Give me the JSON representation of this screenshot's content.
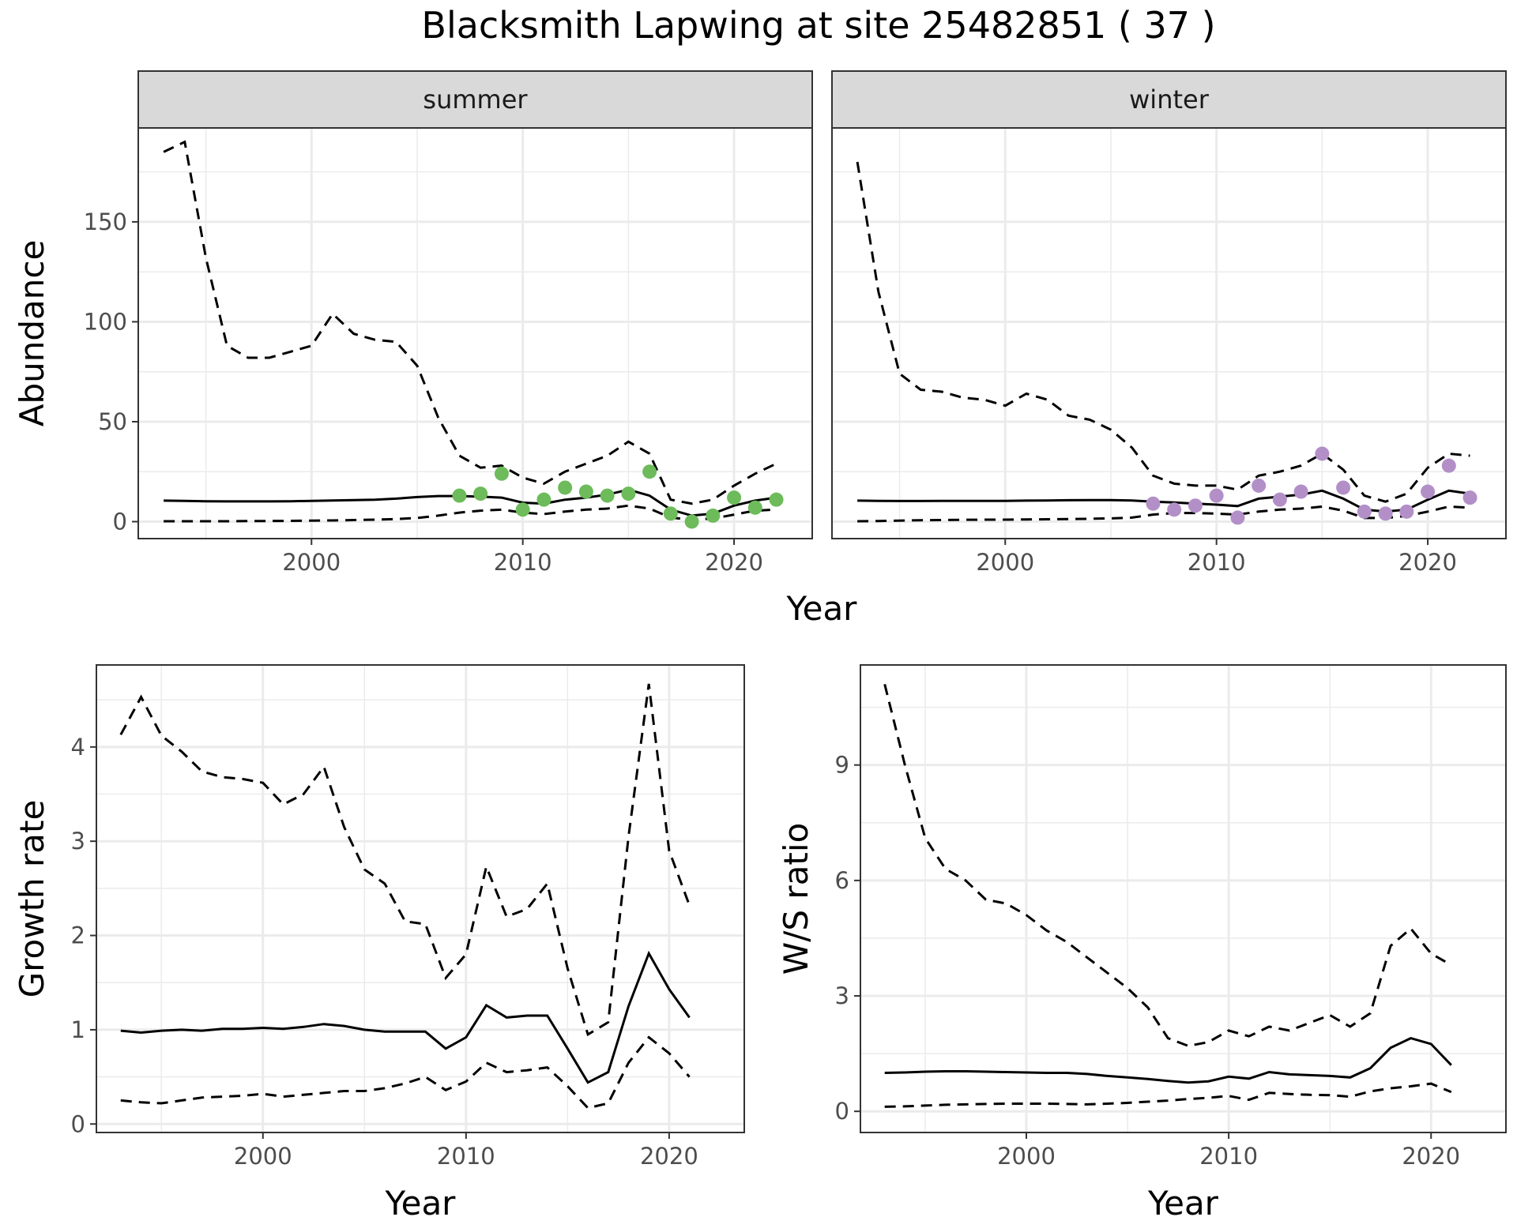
{
  "chart_data": {
    "title": "Blacksmith Lapwing at site 25482851 ( 37 )",
    "colors": {
      "summer_points": "#6dbb5a",
      "winter_points": "#b38fc8",
      "lines": "#000000"
    },
    "abundance": {
      "type": "line",
      "xlabel": "Year",
      "ylabel": "Abundance",
      "xlim": [
        1991.8,
        2023.7
      ],
      "ylim": [
        -8.5,
        197
      ],
      "xticks": [
        2000,
        2010,
        2020
      ],
      "xtick_labels": [
        "2000",
        "2010",
        "2020"
      ],
      "yticks": [
        0,
        50,
        100,
        150
      ],
      "ytick_labels": [
        "0",
        "50",
        "100",
        "150"
      ],
      "grid": true,
      "panels": [
        {
          "strip": "summer",
          "years": [
            1993,
            1994,
            1995,
            1996,
            1997,
            1998,
            1999,
            2000,
            2001,
            2002,
            2003,
            2004,
            2005,
            2006,
            2007,
            2008,
            2009,
            2010,
            2011,
            2012,
            2013,
            2014,
            2015,
            2016,
            2017,
            2018,
            2019,
            2020,
            2021,
            2022
          ],
          "mean": [
            10.5,
            10.4,
            10.2,
            10.1,
            10.1,
            10.1,
            10.2,
            10.4,
            10.6,
            10.8,
            11,
            11.5,
            12.3,
            12.8,
            12.8,
            12.5,
            12,
            9.5,
            9,
            11,
            12,
            13.5,
            16,
            13,
            6,
            3,
            4,
            8,
            10.5,
            12
          ],
          "upper": [
            185,
            190,
            132,
            88,
            82,
            82,
            85,
            88,
            104,
            94,
            91,
            90,
            78,
            52,
            33,
            27,
            28,
            22,
            19,
            25,
            29,
            33,
            40,
            34,
            11,
            9,
            11,
            18,
            24,
            29
          ],
          "lower": [
            0.2,
            0.2,
            0.2,
            0.2,
            0.3,
            0.3,
            0.4,
            0.5,
            0.6,
            0.8,
            1,
            1.3,
            1.8,
            3,
            4.5,
            5.5,
            6,
            4.5,
            3.8,
            5,
            6,
            6.5,
            8,
            6.5,
            2,
            1,
            1.5,
            3.5,
            5.5,
            6
          ],
          "obs_years": [
            2007,
            2008,
            2009,
            2010,
            2011,
            2012,
            2013,
            2014,
            2015,
            2016,
            2017,
            2018,
            2019,
            2020,
            2021,
            2022
          ],
          "obs_values": [
            13,
            14,
            24,
            6,
            11,
            17,
            15,
            13,
            14,
            25,
            4,
            0,
            3,
            12,
            7,
            11
          ]
        },
        {
          "strip": "winter",
          "years": [
            1993,
            1994,
            1995,
            1996,
            1997,
            1998,
            1999,
            2000,
            2001,
            2002,
            2003,
            2004,
            2005,
            2006,
            2007,
            2008,
            2009,
            2010,
            2011,
            2012,
            2013,
            2014,
            2015,
            2016,
            2017,
            2018,
            2019,
            2020,
            2021,
            2022
          ],
          "mean": [
            10.5,
            10.4,
            10.3,
            10.3,
            10.4,
            10.4,
            10.4,
            10.4,
            10.5,
            10.6,
            10.7,
            10.8,
            10.8,
            10.6,
            10,
            9.6,
            9,
            8.5,
            7.8,
            11.5,
            12.5,
            13.5,
            15.5,
            11.5,
            6,
            5,
            6,
            11,
            15.5,
            14
          ],
          "upper": [
            180,
            115,
            74,
            66,
            65,
            62,
            61,
            58,
            64,
            61,
            53,
            51,
            46,
            37,
            23,
            19,
            18,
            18,
            16,
            23,
            25,
            28,
            34,
            26,
            13,
            10,
            14,
            27,
            34,
            33
          ],
          "lower": [
            0.2,
            0.3,
            0.5,
            0.7,
            0.8,
            0.9,
            1,
            1,
            1.1,
            1.2,
            1.3,
            1.4,
            1.6,
            2,
            3.5,
            4.3,
            4.3,
            4,
            3.5,
            5,
            6,
            6.5,
            7.5,
            5.5,
            1.8,
            1.8,
            2.8,
            5,
            7.5,
            7
          ],
          "obs_years": [
            2007,
            2008,
            2009,
            2010,
            2011,
            2012,
            2013,
            2014,
            2015,
            2016,
            2017,
            2018,
            2019,
            2020,
            2021,
            2022
          ],
          "obs_values": [
            9,
            6,
            8,
            13,
            2,
            18,
            11,
            15,
            34,
            17,
            5,
            4,
            5,
            15,
            28,
            12
          ]
        }
      ]
    },
    "growth": {
      "type": "line",
      "xlabel": "Year",
      "ylabel": "Growth rate",
      "xlim": [
        1991.8,
        2023.7
      ],
      "ylim": [
        -0.09,
        4.87
      ],
      "xticks": [
        2000,
        2010,
        2020
      ],
      "xtick_labels": [
        "2000",
        "2010",
        "2020"
      ],
      "yticks": [
        0,
        1,
        2,
        3,
        4
      ],
      "ytick_labels": [
        "0",
        "1",
        "2",
        "3",
        "4"
      ],
      "grid": true,
      "years": [
        1993,
        1994,
        1995,
        1996,
        1997,
        1998,
        1999,
        2000,
        2001,
        2002,
        2003,
        2004,
        2005,
        2006,
        2007,
        2008,
        2009,
        2010,
        2011,
        2012,
        2013,
        2014,
        2015,
        2016,
        2017,
        2018,
        2019,
        2020,
        2021
      ],
      "mean": [
        0.99,
        0.97,
        0.99,
        1,
        0.99,
        1.01,
        1.01,
        1.02,
        1.01,
        1.03,
        1.06,
        1.04,
        1,
        0.98,
        0.98,
        0.98,
        0.8,
        0.92,
        1.26,
        1.13,
        1.15,
        1.15,
        0.8,
        0.44,
        0.55,
        1.25,
        1.81,
        1.43,
        1.13
      ],
      "upper": [
        4.13,
        4.53,
        4.12,
        3.95,
        3.74,
        3.68,
        3.66,
        3.62,
        3.39,
        3.5,
        3.79,
        3.15,
        2.7,
        2.55,
        2.15,
        2.12,
        1.55,
        1.8,
        2.73,
        2.2,
        2.28,
        2.55,
        1.65,
        0.95,
        1.08,
        3.05,
        4.67,
        2.9,
        2.32
      ],
      "lower": [
        0.25,
        0.23,
        0.22,
        0.25,
        0.28,
        0.29,
        0.3,
        0.32,
        0.29,
        0.31,
        0.33,
        0.35,
        0.35,
        0.38,
        0.43,
        0.5,
        0.36,
        0.45,
        0.65,
        0.55,
        0.57,
        0.6,
        0.4,
        0.17,
        0.22,
        0.65,
        0.92,
        0.75,
        0.5
      ]
    },
    "ratio": {
      "type": "line",
      "xlabel": "Year",
      "ylabel": "W/S ratio",
      "xlim": [
        1991.8,
        2023.7
      ],
      "ylim": [
        -0.55,
        11.6
      ],
      "xticks": [
        2000,
        2010,
        2020
      ],
      "xtick_labels": [
        "2000",
        "2010",
        "2020"
      ],
      "yticks": [
        0,
        3,
        6,
        9
      ],
      "ytick_labels": [
        "0",
        "3",
        "6",
        "9"
      ],
      "grid": true,
      "years": [
        1993,
        1994,
        1995,
        1996,
        1997,
        1998,
        1999,
        2000,
        2001,
        2002,
        2003,
        2004,
        2005,
        2006,
        2007,
        2008,
        2009,
        2010,
        2011,
        2012,
        2013,
        2014,
        2015,
        2016,
        2017,
        2018,
        2019,
        2020,
        2021
      ],
      "mean": [
        1,
        1.01,
        1.03,
        1.04,
        1.04,
        1.03,
        1.02,
        1.01,
        1,
        1,
        0.97,
        0.92,
        0.88,
        0.84,
        0.79,
        0.75,
        0.78,
        0.9,
        0.85,
        1.02,
        0.96,
        0.94,
        0.92,
        0.88,
        1.12,
        1.65,
        1.9,
        1.75,
        1.2
      ],
      "upper": [
        11.1,
        9,
        7.1,
        6.3,
        6,
        5.5,
        5.4,
        5.1,
        4.7,
        4.4,
        4,
        3.6,
        3.2,
        2.7,
        1.9,
        1.7,
        1.8,
        2.1,
        1.95,
        2.2,
        2.1,
        2.3,
        2.5,
        2.2,
        2.55,
        4.3,
        4.75,
        4.1,
        3.8
      ],
      "lower": [
        0.12,
        0.13,
        0.15,
        0.17,
        0.18,
        0.19,
        0.2,
        0.2,
        0.2,
        0.19,
        0.18,
        0.2,
        0.22,
        0.25,
        0.28,
        0.32,
        0.35,
        0.4,
        0.3,
        0.48,
        0.45,
        0.43,
        0.42,
        0.38,
        0.52,
        0.6,
        0.65,
        0.72,
        0.5
      ]
    }
  }
}
